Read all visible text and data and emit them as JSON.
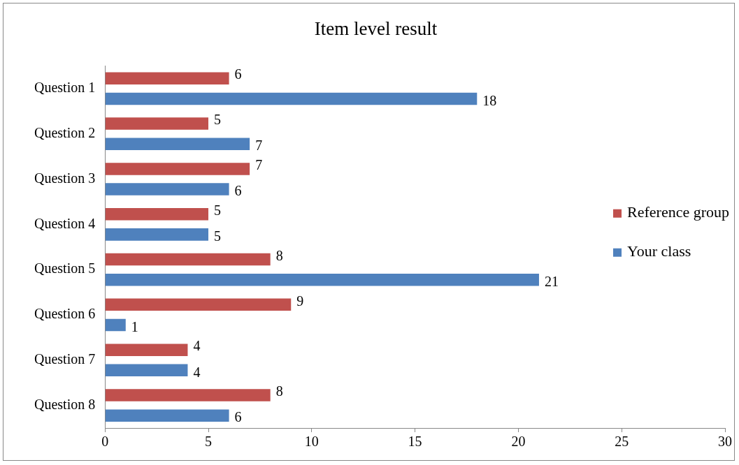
{
  "chart_data": {
    "type": "bar",
    "orientation": "horizontal",
    "title": "Item level result",
    "categories": [
      "Question 1",
      "Question 2",
      "Question 3",
      "Question 4",
      "Question 5",
      "Question 6",
      "Question 7",
      "Question 8"
    ],
    "series": [
      {
        "name": "Your class",
        "color": "#4f81bd",
        "values": [
          18,
          7,
          6,
          5,
          21,
          1,
          4,
          6
        ]
      },
      {
        "name": "Reference group",
        "color": "#c0504d",
        "values": [
          6,
          5,
          7,
          5,
          8,
          9,
          4,
          8
        ]
      }
    ],
    "xlim": [
      0,
      30
    ],
    "xticks": [
      0,
      5,
      10,
      15,
      20,
      25,
      30
    ],
    "grid": false,
    "legend": "right",
    "data_labels": true
  }
}
